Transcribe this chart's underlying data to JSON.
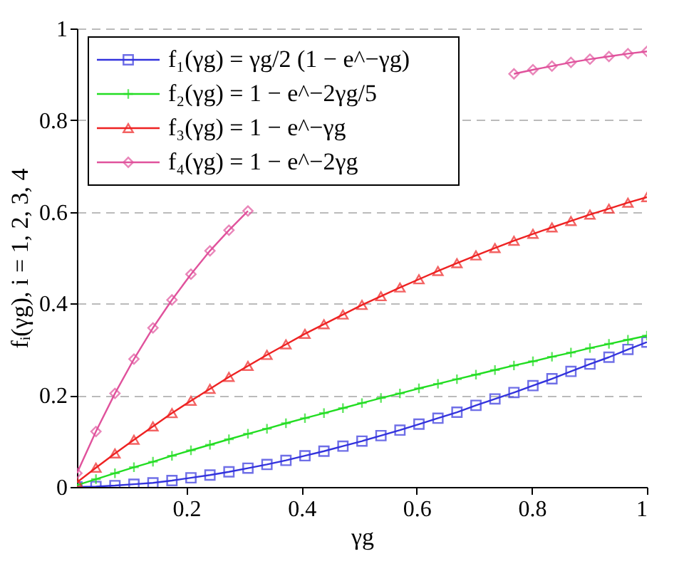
{
  "chart_data": {
    "type": "line",
    "xlabel": "γg",
    "ylabel": "fᵢ(γg), i = 1, 2, 3, 4",
    "x": [
      0.01,
      0.043,
      0.076,
      0.109,
      0.142,
      0.175,
      0.208,
      0.241,
      0.274,
      0.307,
      0.34,
      0.373,
      0.406,
      0.439,
      0.472,
      0.505,
      0.538,
      0.571,
      0.604,
      0.637,
      0.67,
      0.703,
      0.736,
      0.769,
      0.802,
      0.835,
      0.868,
      0.901,
      0.934,
      0.967,
      1.0
    ],
    "series": [
      {
        "name": "f₁(γg) = γg/2 (1 − e^−γg)",
        "color": "#3333dd",
        "marker": "square",
        "values": [
          0.0,
          0.001,
          0.003,
          0.006,
          0.009,
          0.014,
          0.02,
          0.026,
          0.033,
          0.041,
          0.049,
          0.058,
          0.068,
          0.078,
          0.089,
          0.1,
          0.112,
          0.124,
          0.137,
          0.15,
          0.163,
          0.178,
          0.192,
          0.206,
          0.221,
          0.236,
          0.252,
          0.268,
          0.283,
          0.3,
          0.316
        ]
      },
      {
        "name": "f₂(γg) = 1 − e^−2γg/5",
        "color": "#22dd22",
        "marker": "cross",
        "values": [
          0.004,
          0.017,
          0.03,
          0.043,
          0.055,
          0.068,
          0.08,
          0.092,
          0.104,
          0.116,
          0.127,
          0.139,
          0.15,
          0.161,
          0.172,
          0.183,
          0.194,
          0.204,
          0.215,
          0.225,
          0.235,
          0.245,
          0.255,
          0.265,
          0.274,
          0.284,
          0.293,
          0.303,
          0.312,
          0.321,
          0.33
        ]
      },
      {
        "name": "f₃(γg) = 1 − e^−γg",
        "color": "#ee2222",
        "marker": "triangle",
        "values": [
          0.01,
          0.042,
          0.073,
          0.103,
          0.132,
          0.161,
          0.188,
          0.214,
          0.24,
          0.264,
          0.288,
          0.311,
          0.334,
          0.355,
          0.376,
          0.397,
          0.416,
          0.435,
          0.453,
          0.471,
          0.488,
          0.505,
          0.521,
          0.537,
          0.552,
          0.566,
          0.58,
          0.594,
          0.607,
          0.62,
          0.632
        ]
      },
      {
        "name": "f₄(γg) = 1 − e^−2γg",
        "color": "#e0529c",
        "marker": "diamond",
        "values": [
          0.03,
          0.121,
          0.204,
          0.279,
          0.347,
          0.408,
          0.464,
          0.515,
          0.56,
          0.602,
          null,
          null,
          null,
          null,
          null,
          null,
          null,
          null,
          null,
          null,
          null,
          null,
          null,
          0.901,
          0.91,
          0.918,
          0.926,
          0.933,
          0.939,
          0.945,
          0.95
        ]
      }
    ],
    "xlim": [
      0.01,
      1
    ],
    "ylim": [
      0,
      1
    ],
    "xticks": [
      0.2,
      0.4,
      0.6,
      0.8,
      1
    ],
    "yticks": [
      0,
      0.2,
      0.4,
      0.6,
      0.8,
      1
    ],
    "grid": "y",
    "legend": "top left"
  }
}
